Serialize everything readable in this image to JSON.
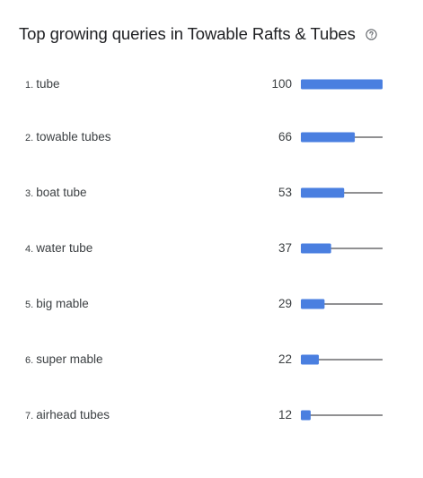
{
  "title": "Top growing queries in Towable Rafts & Tubes",
  "icons": {
    "help": "help-circle-icon"
  },
  "colors": {
    "bar": "#4a7fe0",
    "track": "#202124"
  },
  "chart_data": {
    "type": "bar",
    "orientation": "horizontal",
    "title": "Top growing queries in Towable Rafts & Tubes",
    "xlim": [
      0,
      100
    ],
    "ranks": [
      "1.",
      "2.",
      "3.",
      "4.",
      "5.",
      "6.",
      "7."
    ],
    "categories": [
      "tube",
      "towable tubes",
      "boat tube",
      "water tube",
      "big mable",
      "super mable",
      "airhead tubes"
    ],
    "values": [
      100,
      66,
      53,
      37,
      29,
      22,
      12
    ]
  }
}
